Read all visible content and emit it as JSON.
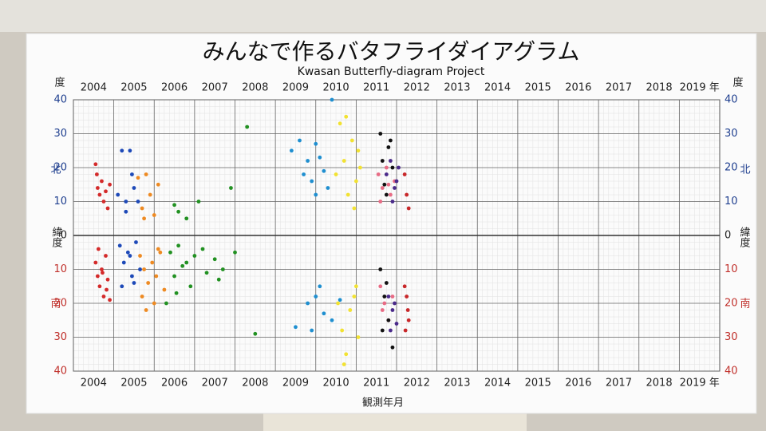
{
  "chart_data": {
    "type": "scatter",
    "title": "みんなで作るバタフライダイアグラム",
    "subtitle": "Kwasan Butterfly-diagram Project",
    "x_label": "観測年月",
    "y_label": "緯度",
    "y_unit": "度",
    "north_label": "北",
    "south_label": "南",
    "north_color": "#1f3f8f",
    "south_color": "#c0302b",
    "xlim": [
      2004,
      2020
    ],
    "xticks": [
      2004,
      2005,
      2006,
      2007,
      2008,
      2009,
      2010,
      2011,
      2012,
      2013,
      2014,
      2015,
      2016,
      2017,
      2018,
      {
        "value": 2019,
        "label": "2019 年"
      }
    ],
    "ylim": [
      -40,
      40
    ],
    "yticks": [
      {
        "value": -40,
        "label": "40"
      },
      {
        "value": -30,
        "label": "30"
      },
      {
        "value": -20,
        "label": "20"
      },
      {
        "value": -10,
        "label": "10"
      },
      0,
      10,
      20,
      30,
      40
    ],
    "grid": true,
    "series": [
      {
        "color": "#d42a2a",
        "x": [
          2004.55,
          2004.6,
          2004.65,
          2004.7,
          2004.75,
          2004.8,
          2004.85,
          2004.9,
          2004.55,
          2004.6,
          2004.65,
          2004.7,
          2004.75,
          2004.8,
          2004.85,
          2004.9,
          2004.62,
          2004.72,
          2004.58,
          2004.82
        ],
        "values": [
          21,
          14,
          12,
          16,
          10,
          13,
          8,
          15,
          -8,
          -12,
          -15,
          -10,
          -18,
          -6,
          -13,
          -19,
          -4,
          -11,
          18,
          -16
        ]
      },
      {
        "color": "#1d49b8",
        "x": [
          2005.1,
          2005.2,
          2005.3,
          2005.4,
          2005.5,
          2005.3,
          2005.45,
          2005.6,
          2005.15,
          2005.25,
          2005.35,
          2005.45,
          2005.55,
          2005.65,
          2005.2,
          2005.4,
          2005.5
        ],
        "values": [
          12,
          25,
          10,
          25,
          14,
          7,
          18,
          10,
          -3,
          -8,
          -5,
          -12,
          -2,
          -10,
          -15,
          -6,
          -14
        ]
      },
      {
        "color": "#ee8a22",
        "x": [
          2005.6,
          2005.7,
          2005.8,
          2005.9,
          2006.0,
          2005.75,
          2006.1,
          2005.65,
          2005.75,
          2005.85,
          2005.95,
          2006.05,
          2006.15,
          2006.25,
          2005.8,
          2006.0,
          2006.1,
          2005.7
        ],
        "values": [
          17,
          8,
          18,
          12,
          6,
          5,
          15,
          -6,
          -10,
          -14,
          -8,
          -12,
          -5,
          -16,
          -22,
          -20,
          -4,
          -18
        ]
      },
      {
        "color": "#229122",
        "x": [
          2006.5,
          2006.6,
          2006.8,
          2007.1,
          2007.9,
          2008.3,
          2006.4,
          2006.6,
          2006.8,
          2007.0,
          2007.2,
          2007.5,
          2007.7,
          2008.0,
          2006.5,
          2006.7,
          2006.9,
          2007.3,
          2007.6,
          2008.5,
          2006.3,
          2006.55
        ],
        "values": [
          9,
          7,
          5,
          10,
          14,
          32,
          -5,
          -3,
          -8,
          -6,
          -4,
          -7,
          -10,
          -5,
          -12,
          -9,
          -15,
          -11,
          -13,
          -29,
          -20,
          -17
        ]
      },
      {
        "color": "#1f8fd0",
        "x": [
          2009.4,
          2009.6,
          2009.8,
          2010.0,
          2010.2,
          2009.9,
          2010.1,
          2010.4,
          2009.7,
          2010.3,
          2010.0,
          2009.5,
          2009.8,
          2010.0,
          2010.2,
          2010.4,
          2010.6,
          2009.9,
          2010.1
        ],
        "values": [
          25,
          28,
          22,
          27,
          19,
          16,
          23,
          40,
          18,
          14,
          12,
          -27,
          -20,
          -18,
          -23,
          -25,
          -19,
          -28,
          -15
        ]
      },
      {
        "color": "#f2e232",
        "x": [
          2010.5,
          2010.6,
          2010.7,
          2010.8,
          2010.9,
          2011.0,
          2011.1,
          2010.75,
          2010.95,
          2011.05,
          2010.55,
          2010.65,
          2010.75,
          2010.85,
          2010.95,
          2011.05,
          2010.7,
          2011.0
        ],
        "values": [
          18,
          33,
          22,
          12,
          28,
          16,
          20,
          35,
          8,
          25,
          -20,
          -28,
          -35,
          -22,
          -18,
          -30,
          -38,
          -15
        ]
      },
      {
        "color": "#e86c85",
        "x": [
          2011.55,
          2011.65,
          2011.75,
          2011.85,
          2011.95,
          2011.6,
          2011.8,
          2011.6,
          2011.7,
          2011.8,
          2011.9,
          2011.65
        ],
        "values": [
          18,
          14,
          20,
          12,
          16,
          10,
          15,
          -15,
          -20,
          -25,
          -18,
          -22
        ]
      },
      {
        "color": "#111111",
        "x": [
          2011.6,
          2011.7,
          2011.8,
          2011.9,
          2011.75,
          2011.65,
          2011.85,
          2011.6,
          2011.7,
          2011.8,
          2011.9,
          2011.75,
          2011.65
        ],
        "values": [
          30,
          15,
          26,
          20,
          12,
          22,
          28,
          -10,
          -18,
          -25,
          -33,
          -14,
          -28
        ]
      },
      {
        "color": "#4a2a8a",
        "x": [
          2011.75,
          2011.85,
          2011.95,
          2012.05,
          2011.9,
          2012.0,
          2011.8,
          2011.9,
          2012.0,
          2011.95,
          2011.85
        ],
        "values": [
          18,
          22,
          14,
          20,
          10,
          16,
          -18,
          -22,
          -26,
          -20,
          -28
        ]
      },
      {
        "color": "#c8282a",
        "x": [
          2012.2,
          2012.25,
          2012.3,
          2012.2,
          2012.28,
          2012.22,
          2012.3,
          2012.25
        ],
        "values": [
          18,
          12,
          8,
          -15,
          -22,
          -28,
          -25,
          -18
        ]
      }
    ]
  }
}
